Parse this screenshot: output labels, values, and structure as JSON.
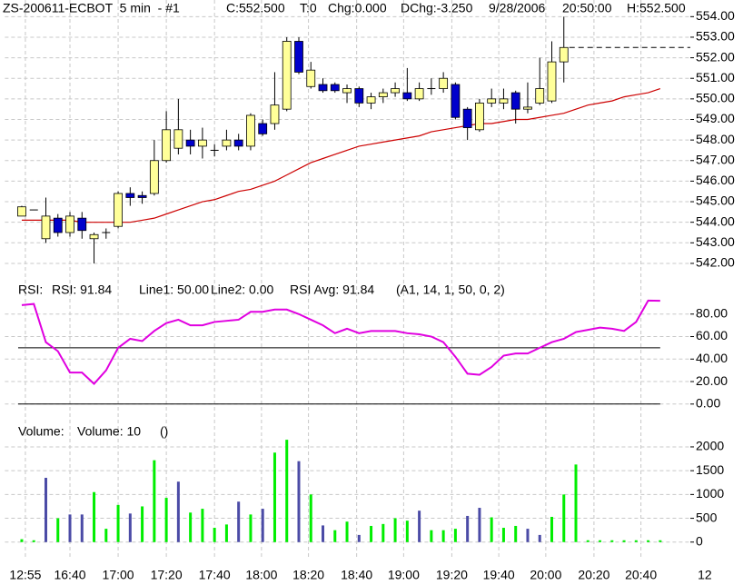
{
  "chart_data": [
    {
      "type": "candlestick",
      "header": [
        {
          "text": "ZS-200611-ECBOT  5 min  - #1",
          "color": "#000000"
        },
        {
          "text": "C:552.500",
          "color": "#000000"
        },
        {
          "text": "T:0",
          "color": "#000000"
        },
        {
          "text": "Chg:0.000",
          "color": "#00c000"
        },
        {
          "text": "DChg:-3.250",
          "color": "#d00000"
        },
        {
          "text": "9/28/2006",
          "color": "#000000"
        },
        {
          "text": "20:50:00",
          "color": "#000000"
        },
        {
          "text": "H:552.500",
          "color": "#000000"
        }
      ],
      "open": [
        544.3,
        544.6,
        543.2,
        544.2,
        543.5,
        544.2,
        543.2,
        543.5,
        543.8,
        545.4,
        545.3,
        545.4,
        547.0,
        547.6,
        548.0,
        547.7,
        547.5,
        547.7,
        548.0,
        547.7,
        548.8,
        548.8,
        549.5,
        552.8,
        550.6,
        550.7,
        550.7,
        550.3,
        550.5,
        549.8,
        550.1,
        550.3,
        550.3,
        550.0,
        550.5,
        550.5,
        550.7,
        549.5,
        548.5,
        549.8,
        549.8,
        550.3,
        549.5,
        549.8,
        549.9,
        551.8,
        null,
        null,
        null,
        null,
        null,
        null,
        null,
        null
      ],
      "high": [
        544.8,
        544.6,
        545.2,
        544.4,
        544.5,
        544.5,
        543.5,
        543.7,
        545.5,
        545.7,
        545.5,
        548.0,
        549.4,
        550.0,
        548.5,
        548.6,
        547.8,
        548.5,
        548.3,
        549.3,
        549.0,
        551.3,
        553.0,
        553.0,
        551.8,
        551.0,
        550.8,
        550.7,
        550.6,
        550.3,
        550.5,
        550.8,
        551.5,
        550.8,
        551.0,
        551.3,
        550.8,
        549.6,
        550.0,
        550.5,
        550.5,
        550.4,
        550.8,
        552.0,
        552.8,
        554.0,
        null,
        null,
        null,
        null,
        null,
        null,
        null,
        null
      ],
      "low": [
        544.3,
        544.6,
        543.0,
        543.3,
        543.3,
        543.2,
        542.0,
        543.2,
        543.7,
        544.8,
        544.9,
        545.3,
        546.9,
        547.3,
        547.3,
        547.1,
        547.2,
        547.5,
        547.5,
        547.5,
        548.2,
        548.5,
        549.4,
        551.2,
        550.5,
        550.3,
        550.3,
        549.8,
        549.6,
        549.5,
        549.8,
        550.1,
        549.9,
        549.9,
        550.2,
        550.3,
        549.0,
        548.0,
        548.4,
        549.6,
        549.5,
        548.8,
        549.3,
        549.7,
        549.8,
        550.8,
        null,
        null,
        null,
        null,
        null,
        null,
        null,
        null
      ],
      "close": [
        544.75,
        544.6,
        544.3,
        543.5,
        544.3,
        543.6,
        543.4,
        543.5,
        545.4,
        545.2,
        545.2,
        547.0,
        548.5,
        548.5,
        547.7,
        548.0,
        547.5,
        548.0,
        547.7,
        549.2,
        548.3,
        549.7,
        552.8,
        551.3,
        551.4,
        550.4,
        550.4,
        550.5,
        549.8,
        550.1,
        550.3,
        550.5,
        550.0,
        550.5,
        550.5,
        551.0,
        549.1,
        548.6,
        549.8,
        550.0,
        550.0,
        549.5,
        549.6,
        550.5,
        551.8,
        552.5,
        null,
        null,
        null,
        null,
        null,
        null,
        null,
        null
      ],
      "up_color": "#ffff99",
      "down_color": "#0000cc",
      "series": [
        {
          "color": "#cc0000",
          "values": [
            544.1,
            544.1,
            544.1,
            544.1,
            544.1,
            544.0,
            544.0,
            544.0,
            544.0,
            544.0,
            544.1,
            544.2,
            544.4,
            544.6,
            544.8,
            545.0,
            545.1,
            545.3,
            545.5,
            545.6,
            545.8,
            546.0,
            546.3,
            546.6,
            546.9,
            547.1,
            547.3,
            547.5,
            547.7,
            547.8,
            547.9,
            548.0,
            548.1,
            548.2,
            548.4,
            548.5,
            548.6,
            548.7,
            548.8,
            548.8,
            548.9,
            549.0,
            549.0,
            549.1,
            549.2,
            549.3,
            549.5,
            549.7,
            549.8,
            549.9,
            550.1,
            550.2,
            550.3,
            550.5
          ]
        }
      ],
      "last_price": 552.5,
      "ylim": [
        541.6,
        554.5
      ],
      "yticks": [
        {
          "value": 542,
          "label": "542.00"
        },
        {
          "value": 543,
          "label": "543.00"
        },
        {
          "value": 544,
          "label": "544.00"
        },
        {
          "value": 545,
          "label": "545.00"
        },
        {
          "value": 546,
          "label": "546.00"
        },
        {
          "value": 547,
          "label": "547.00"
        },
        {
          "value": 548,
          "label": "548.00"
        },
        {
          "value": 549,
          "label": "549.00"
        },
        {
          "value": 550,
          "label": "550.00"
        },
        {
          "value": 551,
          "label": "551.00"
        },
        {
          "value": 552,
          "label": "552.00"
        },
        {
          "value": 553,
          "label": "553.00"
        },
        {
          "value": 554,
          "label": "554.00"
        }
      ],
      "grid": true
    },
    {
      "type": "line",
      "legend": [
        {
          "text": "RSI:",
          "color": "#000000"
        },
        {
          "text": "RSI: 91.84",
          "color": "#e000e0"
        },
        {
          "text": "Line1: 50.00",
          "color": "#000000"
        },
        {
          "text": "Line2: 0.00",
          "color": "#000000"
        },
        {
          "text": "RSI Avg: 91.84",
          "color": "#e000e0"
        },
        {
          "text": "(A1, 14, 1, 50, 0, 2)",
          "color": "#000000"
        }
      ],
      "series": [
        {
          "color": "#e000e0",
          "values": [
            88,
            89,
            55,
            47,
            28,
            28,
            18,
            30,
            50,
            58,
            56,
            65,
            72,
            75,
            70,
            70,
            73,
            74,
            75,
            82,
            82,
            84,
            84,
            80,
            75,
            70,
            63,
            67,
            63,
            65,
            65,
            65,
            63,
            62,
            60,
            55,
            42,
            27,
            26,
            33,
            43,
            45,
            45,
            50,
            55,
            58,
            64,
            66,
            68,
            67,
            65,
            73,
            92,
            91.84
          ]
        }
      ],
      "hlines": [
        {
          "value": 50,
          "color": "#000000"
        },
        {
          "value": 0,
          "color": "#000000"
        }
      ],
      "ylim": [
        -5,
        100
      ],
      "yticks": [
        {
          "value": 0,
          "label": "0.00"
        },
        {
          "value": 20,
          "label": "20.00"
        },
        {
          "value": 40,
          "label": "40.00"
        },
        {
          "value": 60,
          "label": "60.00"
        },
        {
          "value": 80,
          "label": "80.00"
        }
      ],
      "grid": true
    },
    {
      "type": "bar",
      "legend": [
        {
          "text": "Volume:",
          "color": "#000000"
        },
        {
          "text": "Volume: 10",
          "color": "#00cc00"
        },
        {
          "text": "()",
          "color": "#000000"
        }
      ],
      "values": [
        60,
        20,
        1350,
        500,
        580,
        580,
        1050,
        280,
        780,
        600,
        750,
        1720,
        930,
        1270,
        620,
        700,
        300,
        370,
        850,
        580,
        700,
        1880,
        2150,
        1700,
        1000,
        350,
        250,
        430,
        150,
        340,
        380,
        500,
        450,
        660,
        250,
        250,
        280,
        550,
        720,
        520,
        300,
        340,
        280,
        150,
        530,
        1000,
        1630,
        10,
        10,
        10,
        10,
        10,
        10,
        10
      ],
      "colors": [
        "#00ee00",
        "#00ee00",
        "#4b4ba6",
        "#00ee00",
        "#4b4ba6",
        "#4b4ba6",
        "#00ee00",
        "#00ee00",
        "#00ee00",
        "#4b4ba6",
        "#00ee00",
        "#00ee00",
        "#00ee00",
        "#4b4ba6",
        "#00ee00",
        "#00ee00",
        "#00ee00",
        "#00ee00",
        "#4b4ba6",
        "#00ee00",
        "#4b4ba6",
        "#00ee00",
        "#00ee00",
        "#4b4ba6",
        "#00ee00",
        "#4b4ba6",
        "#00ee00",
        "#00ee00",
        "#4b4ba6",
        "#00ee00",
        "#00ee00",
        "#00ee00",
        "#00ee00",
        "#4b4ba6",
        "#00ee00",
        "#00ee00",
        "#00ee00",
        "#4b4ba6",
        "#4b4ba6",
        "#00ee00",
        "#00ee00",
        "#00ee00",
        "#4b4ba6",
        "#4b4ba6",
        "#00ee00",
        "#00ee00",
        "#00ee00",
        "#00ee00",
        "#00ee00",
        "#00ee00",
        "#00ee00",
        "#00ee00",
        "#00ee00",
        "#00ee00"
      ],
      "ylim": [
        -100,
        2400
      ],
      "yticks": [
        0,
        500,
        1000,
        1500,
        2000
      ],
      "grid": true,
      "xlim": [
        -1.4,
        55.5
      ],
      "xticks": [
        {
          "value": 0.3,
          "label": "12:55"
        },
        {
          "value": 4.0,
          "label": "16:40"
        },
        {
          "value": 8.0,
          "label": "17:00"
        },
        {
          "value": 12.0,
          "label": "17:20"
        },
        {
          "value": 16.0,
          "label": "17:40"
        },
        {
          "value": 19.9,
          "label": "18:00"
        },
        {
          "value": 23.8,
          "label": "18:20"
        },
        {
          "value": 27.8,
          "label": "18:40"
        },
        {
          "value": 31.7,
          "label": "19:00"
        },
        {
          "value": 35.7,
          "label": "19:20"
        },
        {
          "value": 39.6,
          "label": "19:40"
        },
        {
          "value": 43.5,
          "label": "20:00"
        },
        {
          "value": 47.5,
          "label": "20:20"
        },
        {
          "value": 51.4,
          "label": "20:40"
        },
        {
          "value": 56.7,
          "label": "12"
        }
      ]
    }
  ]
}
